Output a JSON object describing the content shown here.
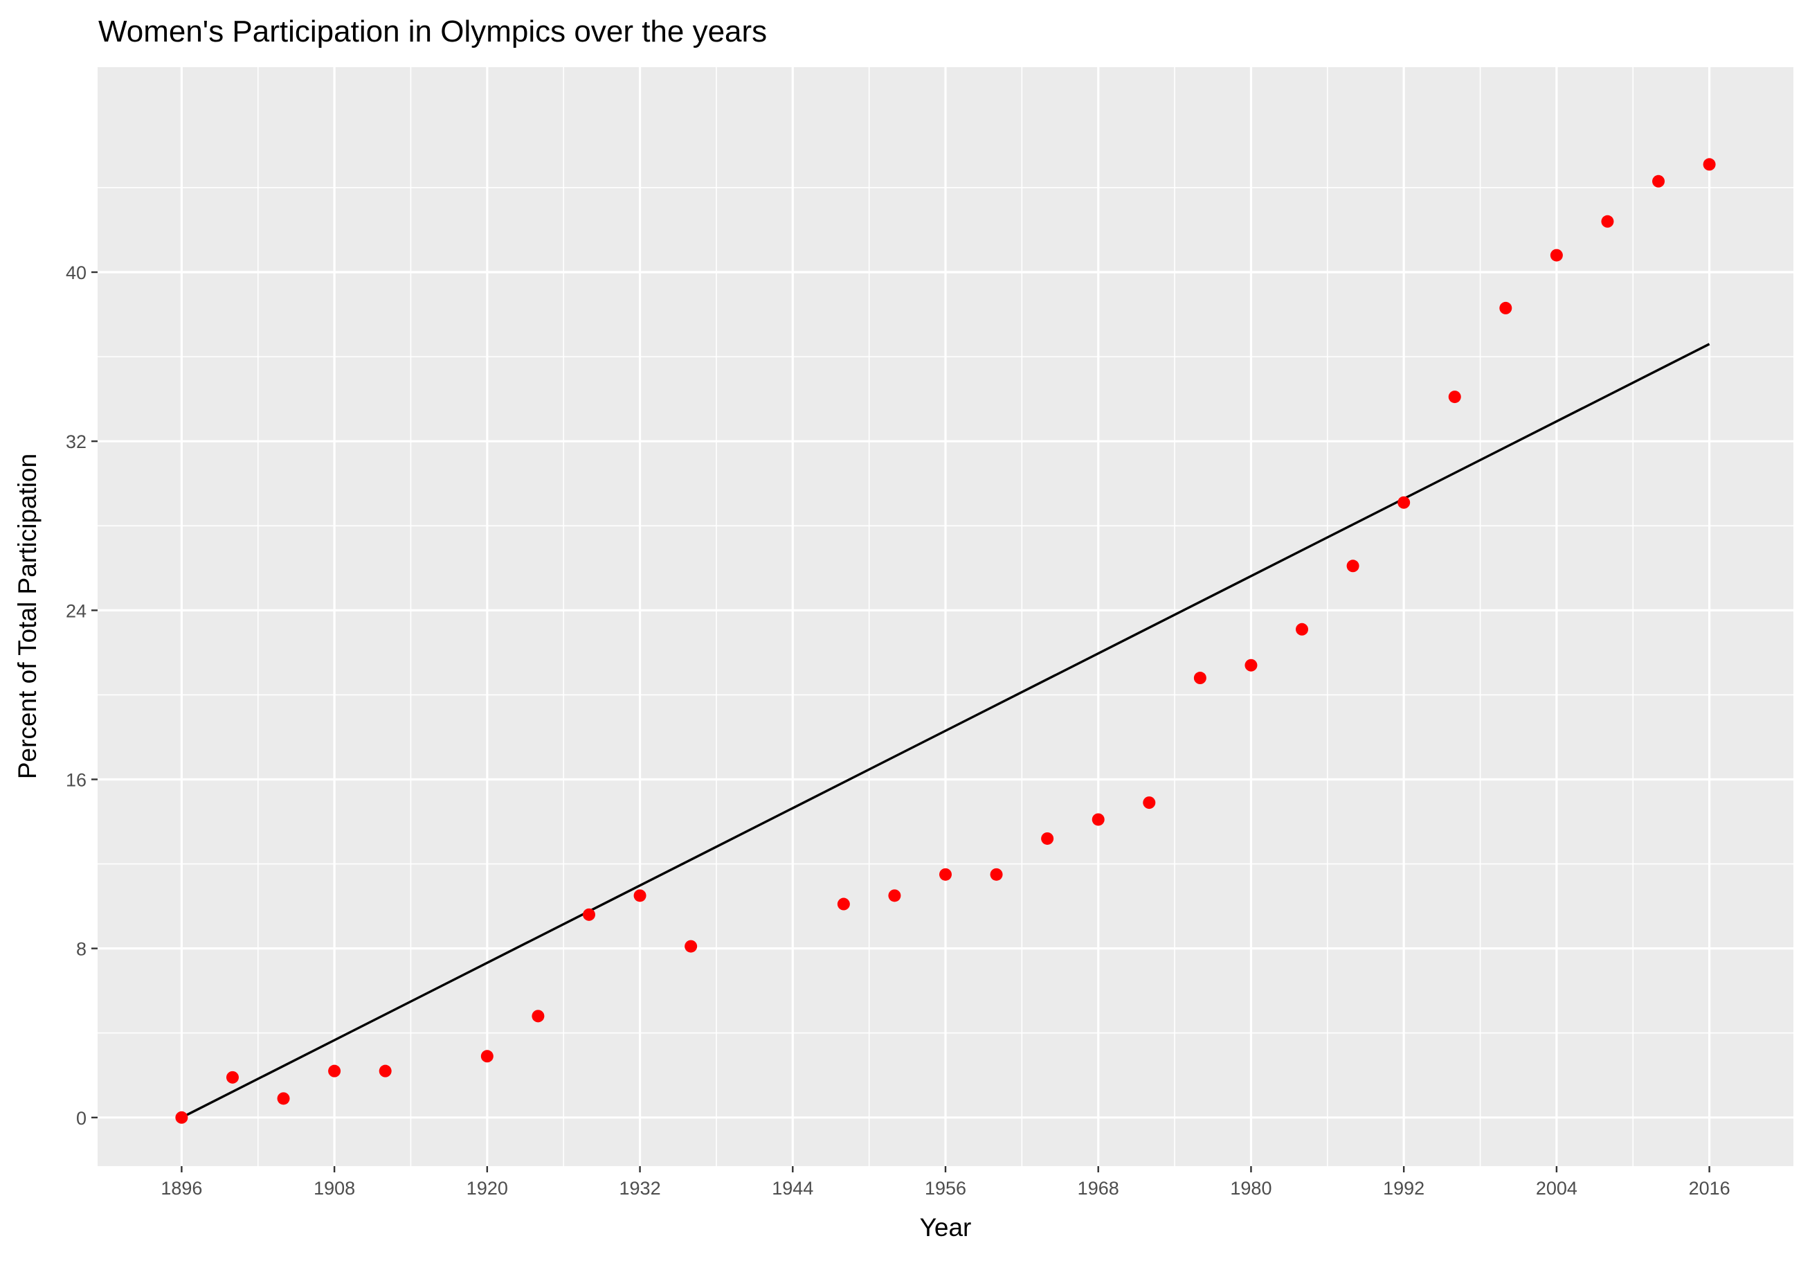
{
  "chart_data": {
    "type": "scatter",
    "title": "Women's Participation in Olympics over the years",
    "xlabel": "Year",
    "ylabel": "Percent of Total Participation",
    "xlim": [
      1889.4,
      2022.6
    ],
    "ylim": [
      -2.3,
      49.7
    ],
    "x_ticks": [
      1896,
      1908,
      1920,
      1932,
      1944,
      1956,
      1968,
      1980,
      1992,
      2004,
      2016
    ],
    "x_tick_labels": [
      "1896",
      "1908",
      "1920",
      "1932",
      "1944",
      "1956",
      "1968",
      "1980",
      "1992",
      "2004",
      "2016"
    ],
    "y_ticks": [
      0,
      8,
      16,
      24,
      32,
      40
    ],
    "y_tick_labels": [
      "0",
      "8",
      "16",
      "24",
      "32",
      "40"
    ],
    "grid": true,
    "points": {
      "color": "#ff0000",
      "x": [
        1896,
        1900,
        1904,
        1908,
        1912,
        1920,
        1924,
        1928,
        1932,
        1936,
        1948,
        1952,
        1956,
        1960,
        1964,
        1968,
        1972,
        1976,
        1980,
        1984,
        1988,
        1992,
        1996,
        2000,
        2004,
        2008,
        2012,
        2016
      ],
      "y": [
        0.0,
        1.9,
        0.9,
        2.2,
        2.2,
        2.9,
        4.8,
        9.6,
        10.5,
        8.1,
        10.1,
        10.5,
        11.5,
        11.5,
        13.2,
        14.1,
        14.9,
        20.8,
        21.4,
        23.1,
        26.1,
        29.1,
        34.1,
        38.3,
        40.8,
        42.4,
        44.3,
        45.1
      ]
    },
    "trend_line": {
      "color": "#000000",
      "x": [
        1896,
        2016
      ],
      "y": [
        0.0,
        36.6
      ]
    },
    "colors": {
      "panel_background": "#ebebeb",
      "grid_line": "#ffffff",
      "point": "#ff0000",
      "line": "#000000"
    }
  }
}
